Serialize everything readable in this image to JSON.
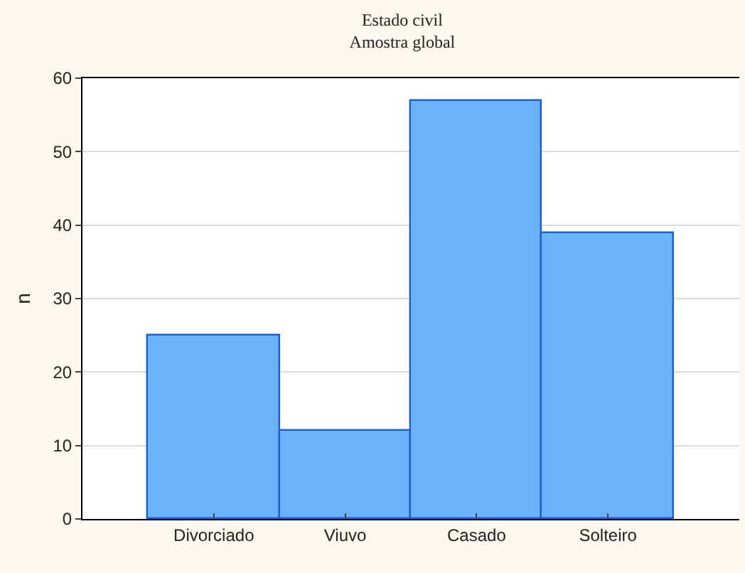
{
  "chart_data": {
    "type": "bar",
    "title": "Estado civil",
    "subtitle": "Amostra global",
    "ylabel": "n",
    "categories": [
      "Divorciado",
      "Viuvo",
      "Casado",
      "Solteiro"
    ],
    "values": [
      25,
      12,
      57,
      39
    ],
    "color": "#6cb2fa",
    "ylim": [
      0,
      60
    ],
    "yticks": [
      0,
      10,
      20,
      30,
      40,
      50,
      60
    ],
    "grid": "y"
  }
}
